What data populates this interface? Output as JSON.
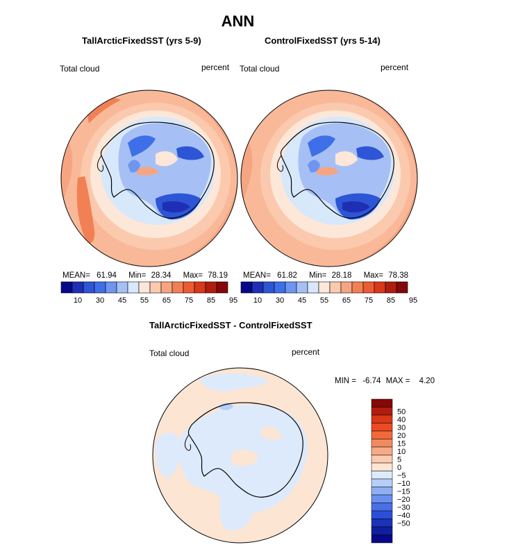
{
  "title": "ANN",
  "panels": [
    {
      "title": "TallArcticFixedSST (yrs 5-9)",
      "variable": "Total cloud",
      "units": "percent",
      "stats": {
        "mean_label": "MEAN=",
        "mean": "61.94",
        "min_label": "Min=",
        "min": "28.34",
        "max_label": "Max=",
        "max": "78.19"
      }
    },
    {
      "title": "ControlFixedSST (yrs 5-14)",
      "variable": "Total cloud",
      "units": "percent",
      "stats": {
        "mean_label": "MEAN=",
        "mean": "61.82",
        "min_label": "Min=",
        "min": "28.18",
        "max_label": "Max=",
        "max": "78.38"
      }
    }
  ],
  "abs_colorbar": {
    "colors": [
      "#08088a",
      "#1f2fb5",
      "#2d55d6",
      "#3f6fe8",
      "#6f95f0",
      "#a6c0f5",
      "#d8e8fb",
      "#fde7d8",
      "#fbc9ae",
      "#f6a583",
      "#f28055",
      "#ec5c32",
      "#d9381a",
      "#b01d0e",
      "#850707"
    ],
    "labels": [
      "10",
      "30",
      "45",
      "55",
      "65",
      "75",
      "85",
      "95"
    ]
  },
  "difference": {
    "title": "TallArcticFixedSST - ControlFixedSST",
    "variable": "Total cloud",
    "units": "percent",
    "stats": {
      "min_label": "MIN =",
      "min": "-6.74",
      "max_label": "MAX =",
      "max": "4.20"
    }
  },
  "diff_colorbar": {
    "colors_top_to_bottom": [
      "#850707",
      "#b01d0e",
      "#d9381a",
      "#ec4a22",
      "#f26a3c",
      "#f28a60",
      "#f6ab88",
      "#fbcaaf",
      "#fde5d3",
      "#ddeafc",
      "#b6cff7",
      "#8eb0f2",
      "#6a8fee",
      "#4a6fe6",
      "#2d4fd8",
      "#1b33b8",
      "#0f1f9e",
      "#08088a"
    ],
    "labels_top_to_bottom": [
      "50",
      "40",
      "30",
      "20",
      "15",
      "10",
      "5",
      "0",
      "−5",
      "−10",
      "−15",
      "−20",
      "−30",
      "−40",
      "−50"
    ]
  },
  "chart_data": [
    {
      "type": "heatmap",
      "projection": "south-polar stereographic",
      "title": "TallArcticFixedSST (yrs 5-9)",
      "variable": "Total cloud",
      "units": "percent",
      "mean": 61.94,
      "min": 28.34,
      "max": 78.19,
      "contour_levels": [
        10,
        20,
        30,
        40,
        45,
        50,
        55,
        60,
        65,
        70,
        75,
        80,
        85,
        90,
        95
      ]
    },
    {
      "type": "heatmap",
      "projection": "south-polar stereographic",
      "title": "ControlFixedSST (yrs 5-14)",
      "variable": "Total cloud",
      "units": "percent",
      "mean": 61.82,
      "min": 28.18,
      "max": 78.38,
      "contour_levels": [
        10,
        20,
        30,
        40,
        45,
        50,
        55,
        60,
        65,
        70,
        75,
        80,
        85,
        90,
        95
      ]
    },
    {
      "type": "heatmap",
      "projection": "south-polar stereographic",
      "title": "TallArcticFixedSST - ControlFixedSST",
      "variable": "Total cloud",
      "units": "percent",
      "min": -6.74,
      "max": 4.2,
      "contour_levels": [
        -50,
        -40,
        -30,
        -20,
        -15,
        -10,
        -5,
        0,
        5,
        10,
        15,
        20,
        30,
        40,
        50
      ]
    }
  ]
}
